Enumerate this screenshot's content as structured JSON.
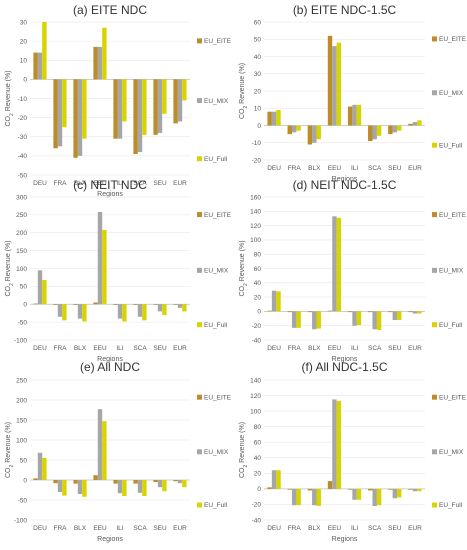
{
  "colors": {
    "EU_EITE": "#bc8b2a",
    "EU_MIX": "#a6a6a6",
    "EU_Full": "#d8d400"
  },
  "chart_data": [
    {
      "type": "bar",
      "title": "(a) EITE NDC",
      "xlabel": "Regions",
      "ylabel": "CO2 Revenue (%)",
      "ylim": [
        -50,
        30
      ],
      "yticks": [
        -50,
        -40,
        -30,
        -20,
        -10,
        0,
        10,
        20,
        30
      ],
      "categories": [
        "DEU",
        "FRA",
        "BLX",
        "EEU",
        "ILI",
        "SCA",
        "SEU",
        "EUR"
      ],
      "series": [
        {
          "name": "EU_EITE",
          "values": [
            14,
            -36,
            -41,
            17,
            -31,
            -39,
            -29,
            -23
          ]
        },
        {
          "name": "EU_MIX",
          "values": [
            14,
            -35,
            -40,
            17,
            -31,
            -38,
            -28,
            -22
          ]
        },
        {
          "name": "EU_Full",
          "values": [
            30,
            -25,
            -31,
            27,
            -22,
            -29,
            -18,
            -11
          ]
        }
      ],
      "legend": "right"
    },
    {
      "type": "bar",
      "title": "(b) EITE NDC-1.5C",
      "xlabel": "Regions",
      "ylabel": "CO2 Revenue (%)",
      "ylim": [
        -20,
        60
      ],
      "yticks": [
        -20,
        -10,
        0,
        10,
        20,
        30,
        40,
        50,
        60
      ],
      "categories": [
        "DEU",
        "FRA",
        "BLX",
        "EEU",
        "ILI",
        "SCA",
        "SEU",
        "EUR"
      ],
      "series": [
        {
          "name": "EU_EITE",
          "values": [
            8,
            -5,
            -11,
            52,
            11,
            -9,
            -5,
            1
          ]
        },
        {
          "name": "EU_MIX",
          "values": [
            8,
            -4,
            -10,
            46,
            12,
            -8,
            -4,
            2
          ]
        },
        {
          "name": "EU_Full",
          "values": [
            9,
            -3,
            -8,
            48,
            12,
            -6,
            -3,
            3
          ]
        }
      ],
      "legend": "right"
    },
    {
      "type": "bar",
      "title": "(c) NEIT NDC",
      "xlabel": "Regions",
      "ylabel": "CO2 Revenue (%)",
      "ylim": [
        -100,
        300
      ],
      "yticks": [
        -100,
        -50,
        0,
        50,
        100,
        150,
        200,
        250,
        300
      ],
      "categories": [
        "DEU",
        "FRA",
        "BLX",
        "EEU",
        "ILI",
        "SCA",
        "SEU",
        "EUR"
      ],
      "series": [
        {
          "name": "EU_EITE",
          "values": [
            2,
            -2,
            -2,
            5,
            -2,
            -2,
            -1,
            -1
          ]
        },
        {
          "name": "EU_MIX",
          "values": [
            95,
            -35,
            -40,
            258,
            -40,
            -35,
            -20,
            -10
          ]
        },
        {
          "name": "EU_Full",
          "values": [
            68,
            -45,
            -48,
            208,
            -48,
            -45,
            -30,
            -20
          ]
        }
      ],
      "legend": "right"
    },
    {
      "type": "bar",
      "title": "(d) NEIT NDC-1.5C",
      "xlabel": "Regions",
      "ylabel": "CO2 Revenue (%)",
      "ylim": [
        -40,
        160
      ],
      "yticks": [
        -40,
        -20,
        0,
        20,
        40,
        60,
        80,
        100,
        120,
        140,
        160
      ],
      "categories": [
        "DEU",
        "FRA",
        "BLX",
        "EEU",
        "ILI",
        "SCA",
        "SEU",
        "EUR"
      ],
      "series": [
        {
          "name": "EU_EITE",
          "values": [
            1,
            -1,
            -1,
            1,
            -1,
            -1,
            -1,
            -1
          ]
        },
        {
          "name": "EU_MIX",
          "values": [
            29,
            -23,
            -25,
            133,
            -20,
            -25,
            -12,
            -3
          ]
        },
        {
          "name": "EU_Full",
          "values": [
            28,
            -23,
            -24,
            131,
            -19,
            -26,
            -12,
            -3
          ]
        }
      ],
      "legend": "right"
    },
    {
      "type": "bar",
      "title": "(e) All NDC",
      "xlabel": "Regions",
      "ylabel": "CO2 Revenue (%)",
      "ylim": [
        -100,
        250
      ],
      "yticks": [
        -100,
        -50,
        0,
        50,
        100,
        150,
        200,
        250
      ],
      "categories": [
        "DEU",
        "FRA",
        "BLX",
        "EEU",
        "ILI",
        "SCA",
        "SEU",
        "EUR"
      ],
      "series": [
        {
          "name": "EU_EITE",
          "values": [
            4,
            -8,
            -9,
            12,
            -9,
            -9,
            -5,
            -3
          ]
        },
        {
          "name": "EU_MIX",
          "values": [
            68,
            -30,
            -35,
            177,
            -33,
            -32,
            -18,
            -8
          ]
        },
        {
          "name": "EU_Full",
          "values": [
            55,
            -39,
            -42,
            147,
            -40,
            -40,
            -28,
            -18
          ]
        }
      ],
      "legend": "right"
    },
    {
      "type": "bar",
      "title": "(f) All NDC-1.5C",
      "xlabel": "Regions",
      "ylabel": "CO2 Revenue (%)",
      "ylim": [
        -40,
        140
      ],
      "yticks": [
        -40,
        -20,
        0,
        20,
        40,
        60,
        80,
        100,
        120,
        140
      ],
      "categories": [
        "DEU",
        "FRA",
        "BLX",
        "EEU",
        "ILI",
        "SCA",
        "SEU",
        "EUR"
      ],
      "series": [
        {
          "name": "EU_EITE",
          "values": [
            2,
            -1,
            -2,
            10,
            -1,
            -2,
            -1,
            -1
          ]
        },
        {
          "name": "EU_MIX",
          "values": [
            24,
            -21,
            -21,
            115,
            -14,
            -22,
            -12,
            -3
          ]
        },
        {
          "name": "EU_Full",
          "values": [
            24,
            -21,
            -22,
            113,
            -14,
            -21,
            -11,
            -3
          ]
        }
      ],
      "legend": "right"
    }
  ]
}
